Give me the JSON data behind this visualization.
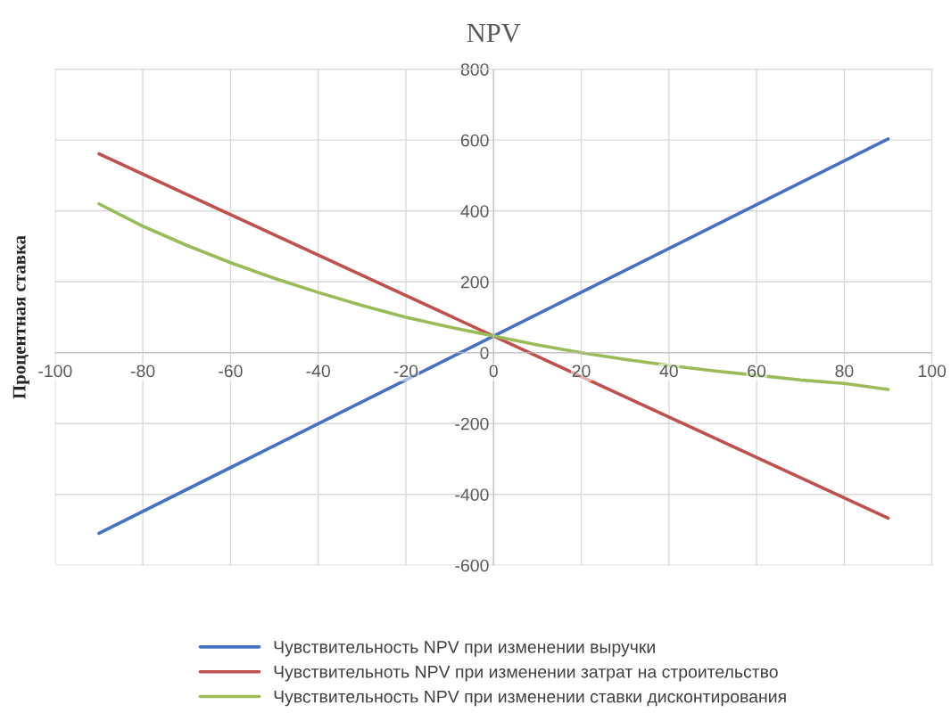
{
  "chart_data": {
    "type": "line",
    "title": "NPV",
    "ylabel": "Процентная ставка",
    "series": [
      {
        "name": "Чувствительность NPV при изменении выручки",
        "color": "#4472c4",
        "x": [
          -90,
          0,
          90
        ],
        "values": [
          -510,
          47,
          603
        ]
      },
      {
        "name": "Чувствительноть NPV при изменении затрат на строительство",
        "color": "#c0504d",
        "x": [
          -90,
          0,
          90
        ],
        "values": [
          561,
          47,
          -467
        ]
      },
      {
        "name": "Чувствительность NPV при изменении ставки дисконтирования",
        "color": "#9bbb59",
        "x": [
          -90,
          -80,
          -70,
          -60,
          -50,
          -40,
          -30,
          -20,
          -10,
          0,
          10,
          20,
          30,
          40,
          50,
          60,
          70,
          80,
          90
        ],
        "values": [
          420,
          357,
          303,
          254,
          210,
          170,
          133,
          100,
          72,
          47,
          22,
          0,
          -19,
          -36,
          -51,
          -64,
          -77,
          -87,
          -104
        ]
      }
    ],
    "xlim": [
      -100,
      100
    ],
    "xticks": [
      -100,
      -80,
      -60,
      -40,
      -20,
      0,
      20,
      40,
      60,
      80,
      100
    ],
    "ylim": [
      -600,
      800
    ],
    "yticks": [
      -600,
      -400,
      -200,
      0,
      200,
      400,
      600,
      800
    ],
    "grid": true,
    "legend": "bottom",
    "marker": "none",
    "line_style": "solid"
  }
}
